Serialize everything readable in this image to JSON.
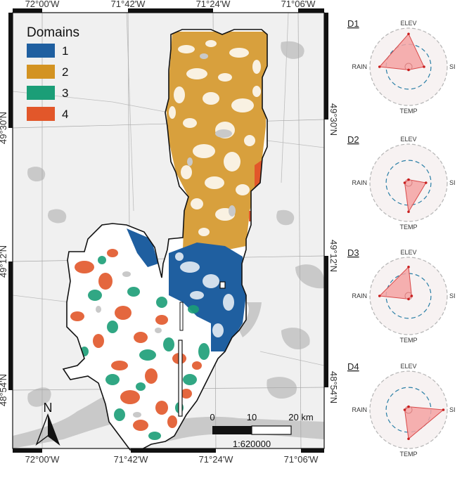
{
  "map": {
    "legend": {
      "title": "Domains",
      "items": [
        {
          "label": "1",
          "color": "#1f5fa0"
        },
        {
          "label": "2",
          "color": "#d39322"
        },
        {
          "label": "3",
          "color": "#1b9e77"
        },
        {
          "label": "4",
          "color": "#e2572a"
        }
      ]
    },
    "graticule": {
      "top": [
        "72°00'W",
        "71°42'W",
        "71°24'W",
        "71°06'W"
      ],
      "bottom": [
        "72°00'W",
        "71°42'W",
        "71°24'W",
        "71°06'W"
      ],
      "left": [
        "49°30'N",
        "49°12'N",
        "48°54'N"
      ],
      "right": [
        "49°30'N",
        "49°12'N",
        "48°54'N"
      ]
    },
    "scale_bar": {
      "ticks": [
        "0",
        "10",
        "20 km"
      ],
      "ratio": "1:620000"
    },
    "north_label": "N",
    "colors": {
      "land": "#f0f0f0",
      "water": "#c8c8c8",
      "territory": "#ffffff",
      "outline": "#111111"
    }
  },
  "radar": {
    "axes": [
      "ELEV",
      "SI",
      "TEMP",
      "RAIN"
    ],
    "panels": [
      {
        "title": "D1",
        "values": [
          0.85,
          0.4,
          0.05,
          0.75
        ]
      },
      {
        "title": "D2",
        "values": [
          0.05,
          0.45,
          0.75,
          0.1
        ]
      },
      {
        "title": "D3",
        "values": [
          0.75,
          0.05,
          0.05,
          0.75
        ]
      },
      {
        "title": "D4",
        "values": [
          0.05,
          0.9,
          0.75,
          0.1
        ]
      }
    ],
    "colors": {
      "fill": "#f4a3a3",
      "stroke": "#d94a4a",
      "point": "#c81e1e",
      "dashed": "#2a7fa6",
      "ring": "#b5b5b5"
    }
  }
}
